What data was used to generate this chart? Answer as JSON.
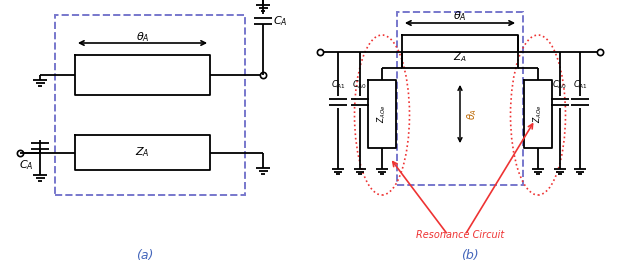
{
  "fig_width": 6.41,
  "fig_height": 2.67,
  "dpi": 100,
  "bg_color": "#ffffff",
  "dashed_box_color": "#7777cc",
  "red_color": "#ee3333",
  "black": "#000000",
  "blue_label": "#4466bb",
  "sub_label_a": "(a)",
  "sub_label_b": "(b)",
  "theta_label": "$\\theta_A$",
  "ZA_label": "$Z_A$",
  "CA_label": "$C_A$",
  "CA1_label": "$C_{A1}$",
  "CA0_label": "$C_{A0}$",
  "ZAOe_label": "$Z_{AOe}$",
  "resonance_label": "Resonance Circuit"
}
